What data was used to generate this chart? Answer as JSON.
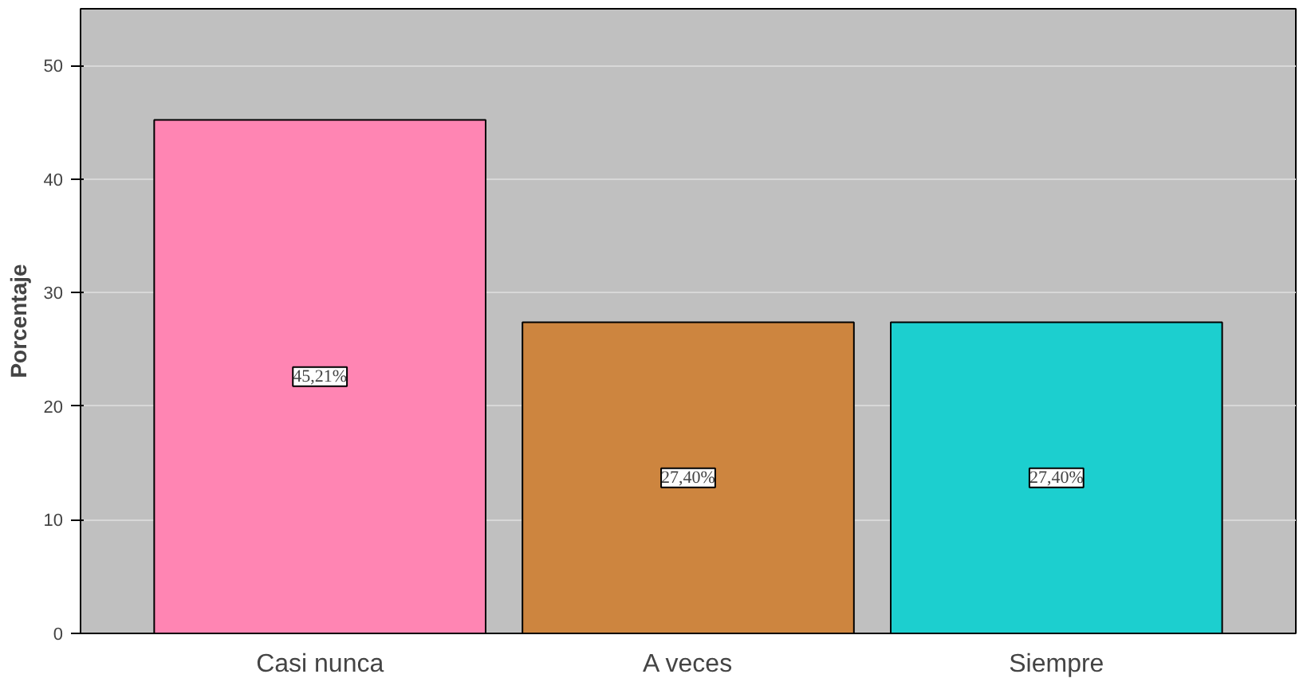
{
  "chart_data": {
    "type": "bar",
    "ylabel": "Porcentaje",
    "categories": [
      "Casi nunca",
      "A veces",
      "Siempre"
    ],
    "values": [
      45.21,
      27.4,
      27.4
    ],
    "colors": [
      "#ff85b3",
      "#cd853f",
      "#1ccfcf"
    ],
    "value_labels": [
      "45,21%",
      "27,40%",
      "27,40%"
    ],
    "ylim": [
      0,
      55
    ],
    "yticks": [
      0,
      10,
      20,
      30,
      40,
      50
    ],
    "grid": "y"
  }
}
